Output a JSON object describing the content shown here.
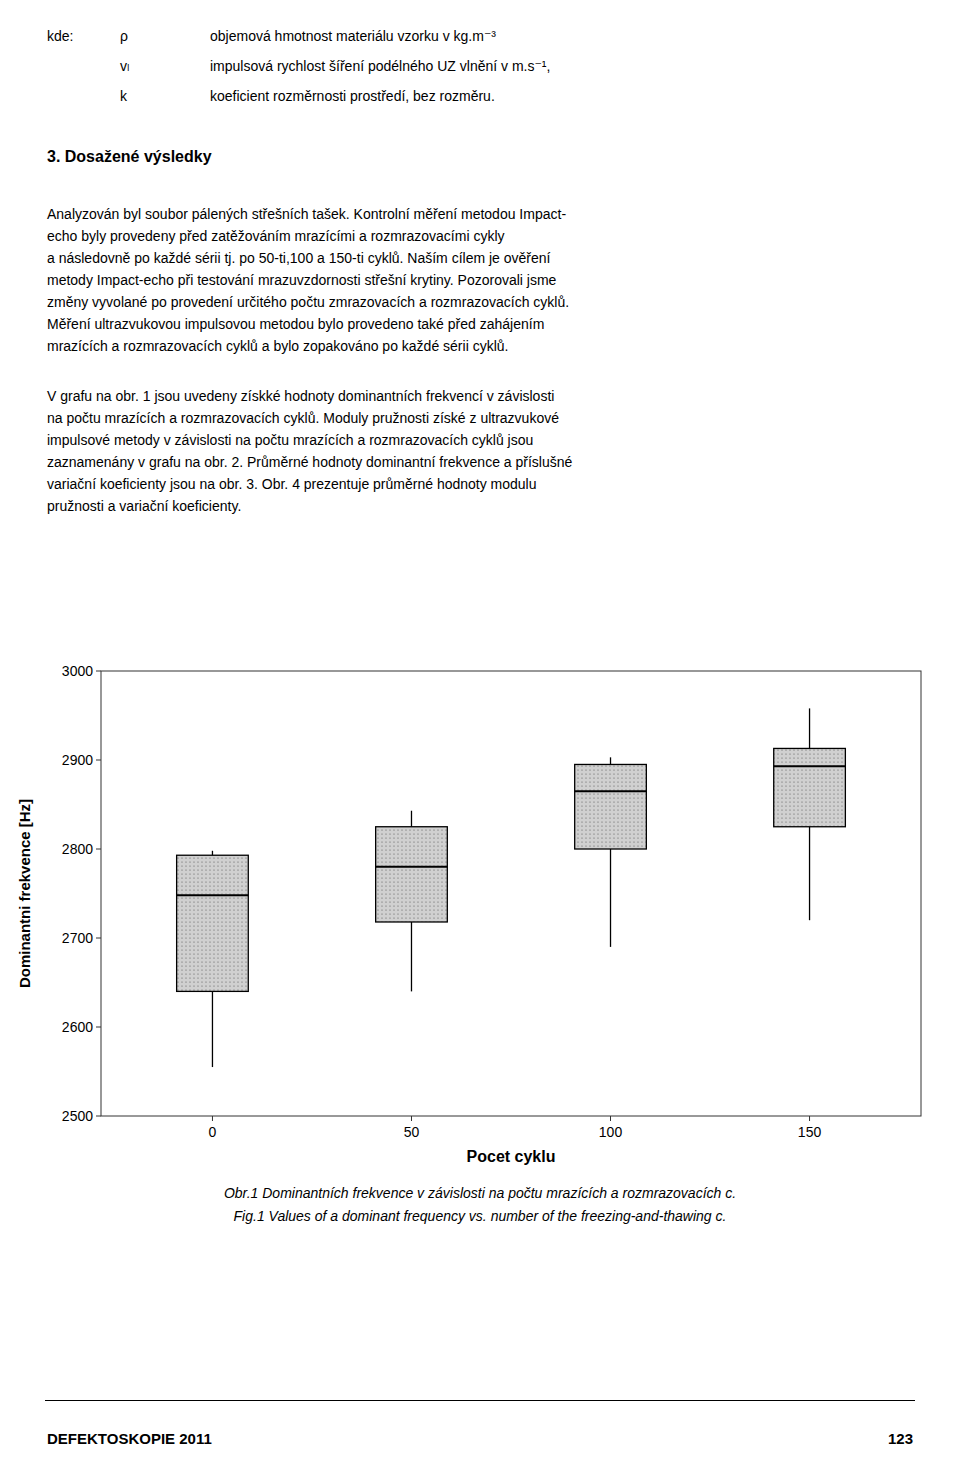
{
  "chart_data": {
    "type": "box",
    "xlabel": "Pocet cyklu",
    "ylabel": "Dominantni frekvence [Hz]",
    "x": [
      0,
      50,
      100,
      150
    ],
    "xlim": [
      -28,
      178
    ],
    "xticks": [
      0,
      50,
      100,
      150
    ],
    "ylim": [
      2500,
      3000
    ],
    "yticks": [
      2500,
      2600,
      2700,
      2800,
      2900,
      3000
    ],
    "grid": false,
    "color": "#d0d0d0",
    "boxes": [
      {
        "whisker_low": 2555,
        "q1": 2640,
        "median": 2748,
        "q3": 2793,
        "whisker_high": 2798
      },
      {
        "whisker_low": 2640,
        "q1": 2718,
        "median": 2780,
        "q3": 2825,
        "whisker_high": 2843
      },
      {
        "whisker_low": 2690,
        "q1": 2800,
        "median": 2865,
        "q3": 2895,
        "whisker_high": 2903
      },
      {
        "whisker_low": 2720,
        "q1": 2825,
        "median": 2893,
        "q3": 2913,
        "whisker_high": 2958
      }
    ]
  },
  "page": {
    "header_label": "kde:",
    "header_rows": [
      {
        "symbol": "ρ",
        "text": "objemová hmotnost materiálu vzorku v kg.m⁻³"
      },
      {
        "symbol": "vₗ",
        "text": "impulsová rychlost šíření podélného UZ  vlnění v m.s⁻¹,"
      },
      {
        "symbol": "k",
        "text": "koeficient  rozměrnosti prostředí, bez rozměru."
      }
    ],
    "section_title": "3. Dosažené výsledky",
    "paragraphs": [
      [
        "Analyzován byl soubor pálených střešních tašek. Kontrolní měření metodou Impact-",
        "echo byly provedeny před zatěžováním mrazícími a rozmrazovacími cykly",
        "a následovně po každé sérii tj. po 50-ti,100 a 150-ti cyklů. Naším cílem je ověření",
        "metody Impact-echo při testování mrazuvzdornosti střešní krytiny. Pozorovali jsme",
        "změny vyvolané po provedení určitého počtu zmrazovacích a rozmrazovacích cyklů.",
        "Měření ultrazvukovou impulsovou metodou bylo provedeno také před zahájením",
        "mrazících a rozmrazovacích cyklů a bylo zopakováno po každé sérii cyklů."
      ],
      [
        "V grafu na obr. 1 jsou uvedeny získké hodnoty dominantních frekvencí v závislosti",
        "na počtu mrazících a rozmrazovacích cyklů. Moduly pružnosti získé z ultrazvukové",
        "impulsové metody v závislosti na počtu mrazících a rozmrazovacích cyklů jsou",
        "zaznamenány v grafu na obr. 2. Průměrné hodnoty dominantní frekvence a příslušné",
        "variační koeficienty jsou na obr. 3. Obr. 4 prezentuje průměrné hodnoty modulu",
        "pružnosti a variační koeficienty."
      ]
    ],
    "captions": [
      "Obr.1 Dominantních frekvence v závislosti na počtu mrazících a rozmrazovacích c.",
      "Fig.1 Values of a dominant frequency vs. number of the freezing-and-thawing c."
    ],
    "footer_left": "DEFEKTOSKOPIE 2011",
    "footer_right": "123"
  }
}
